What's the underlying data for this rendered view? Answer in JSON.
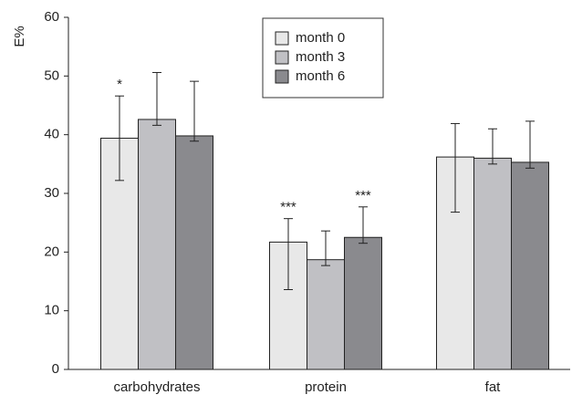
{
  "chart_data": {
    "type": "bar",
    "y_label": "E%",
    "categories": [
      "carbohydrates",
      "protein",
      "fat"
    ],
    "series": [
      {
        "name": "month 0",
        "color": "#e8e8e8",
        "values": [
          39.4,
          21.7,
          36.2
        ],
        "error_upper": [
          7.2,
          4.0,
          5.7
        ],
        "error_lower": [
          7.2,
          8.1,
          9.4
        ],
        "significance": [
          "*",
          "***",
          null
        ]
      },
      {
        "name": "month 3",
        "color": "#c0c0c4",
        "values": [
          42.6,
          18.7,
          36.0
        ],
        "error_upper": [
          8.0,
          4.9,
          5.0
        ],
        "error_lower": [
          1.0,
          1.0,
          1.0
        ],
        "significance": [
          null,
          null,
          null
        ]
      },
      {
        "name": "month 6",
        "color": "#8a8a8e",
        "values": [
          39.8,
          22.5,
          35.3
        ],
        "error_upper": [
          9.3,
          5.2,
          7.0
        ],
        "error_lower": [
          0.9,
          1.0,
          1.0
        ],
        "significance": [
          null,
          "***",
          null
        ]
      }
    ],
    "ylim": [
      0,
      60
    ],
    "yticks": [
      0,
      10,
      20,
      30,
      40,
      50,
      60
    ],
    "grid": false,
    "legend": "top"
  }
}
